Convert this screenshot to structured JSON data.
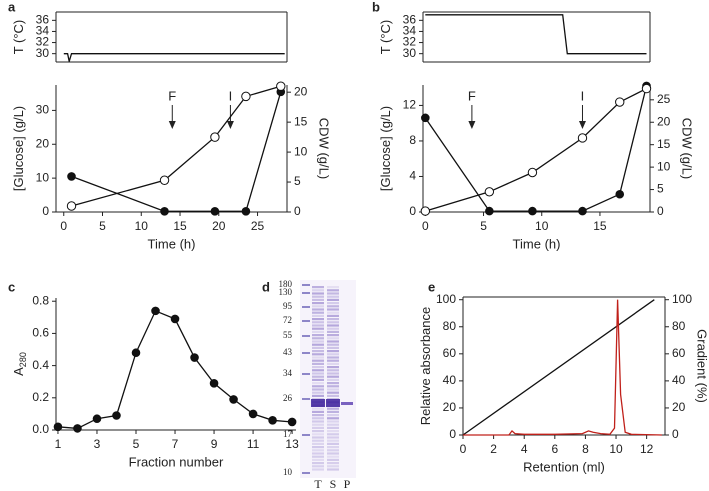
{
  "chart_data": [
    {
      "type": "line",
      "label": "a",
      "ylabel": "T (°C)",
      "xlim": [
        -1,
        28.8
      ],
      "ylim": [
        28.5,
        37.5
      ],
      "yticks": [
        30,
        32,
        34,
        36
      ],
      "series": [
        {
          "color": "#111111",
          "marker": "none",
          "x": [
            0,
            0.5,
            0.7,
            1,
            28.5
          ],
          "values": [
            30,
            30,
            28.6,
            30,
            30
          ]
        }
      ]
    },
    {
      "type": "line",
      "xlabel": "Time (h)",
      "ylabel": "[Glucose] (g/L)",
      "y2label": "CDW (g/L)",
      "xlim": [
        -1,
        28.8
      ],
      "ylim": [
        0,
        37.5
      ],
      "y2lim": [
        0,
        21.2
      ],
      "xticks": [
        0,
        5,
        10,
        15,
        20,
        25
      ],
      "yticks": [
        0,
        10,
        20,
        30
      ],
      "y2ticks": [
        0,
        5,
        10,
        15,
        20
      ],
      "annotations": [
        {
          "text": "F",
          "x": 14
        },
        {
          "text": "I",
          "x": 21.5
        }
      ],
      "series": [
        {
          "color": "#111111",
          "marker": "filled",
          "x": [
            1,
            13,
            19.5,
            23.5,
            28
          ],
          "values": [
            10.5,
            0.2,
            0.2,
            0.2,
            35.5
          ]
        },
        {
          "color": "#111111",
          "marker": "open",
          "axis": "y2",
          "x": [
            1,
            13,
            19.5,
            23.5,
            28
          ],
          "values": [
            1,
            5.3,
            12.5,
            19.3,
            21
          ]
        }
      ]
    },
    {
      "type": "line",
      "label": "b",
      "ylabel": "T (°C)",
      "xlim": [
        -0.2,
        19.3
      ],
      "ylim": [
        28.5,
        37.5
      ],
      "yticks": [
        30,
        32,
        34,
        36
      ],
      "series": [
        {
          "color": "#111111",
          "marker": "none",
          "x": [
            0,
            11.8,
            12.2,
            19
          ],
          "values": [
            37,
            37,
            30,
            30
          ]
        }
      ]
    },
    {
      "type": "line",
      "xlabel": "Time (h)",
      "ylabel": "[Glucose] (g/L)",
      "y2label": "CDW (g/L)",
      "xlim": [
        -0.2,
        19.3
      ],
      "ylim": [
        0,
        14.3
      ],
      "y2lim": [
        0,
        28.3
      ],
      "xticks": [
        0,
        5,
        10,
        15
      ],
      "yticks": [
        0,
        4,
        8,
        12
      ],
      "y2ticks": [
        0,
        5,
        10,
        15,
        20,
        25
      ],
      "annotations": [
        {
          "text": "F",
          "x": 4
        },
        {
          "text": "I",
          "x": 13.5
        }
      ],
      "series": [
        {
          "color": "#111111",
          "marker": "filled",
          "x": [
            0,
            5.5,
            9.2,
            13.5,
            16.7,
            19
          ],
          "values": [
            10.6,
            0.1,
            0.1,
            0.1,
            2,
            14.2
          ]
        },
        {
          "color": "#111111",
          "marker": "open",
          "axis": "y2",
          "x": [
            0,
            5.5,
            9.2,
            13.5,
            16.7,
            19
          ],
          "values": [
            0.2,
            4.5,
            8.8,
            16.5,
            24.5,
            27.5
          ]
        }
      ]
    },
    {
      "type": "line",
      "label": "c",
      "xlabel": "Fraction number",
      "ylabel": "A",
      "ylabel_sub": "280",
      "xlim": [
        0.9,
        13.2
      ],
      "ylim": [
        0,
        0.82
      ],
      "xticks": [
        1,
        3,
        5,
        7,
        9,
        11,
        13
      ],
      "yticks": [
        {
          "value": 0,
          "label": "0.0"
        },
        {
          "value": 0.2,
          "label": "0.2"
        },
        {
          "value": 0.4,
          "label": "0.4"
        },
        {
          "value": 0.6,
          "label": "0.6"
        },
        {
          "value": 0.8,
          "label": "0.8"
        }
      ],
      "series": [
        {
          "color": "#111111",
          "marker": "filled",
          "x": [
            1,
            2,
            3,
            4,
            5,
            6,
            7,
            8,
            9,
            10,
            11,
            12,
            13
          ],
          "values": [
            0.02,
            0.01,
            0.07,
            0.09,
            0.48,
            0.74,
            0.69,
            0.45,
            0.29,
            0.19,
            0.1,
            0.06,
            0.05
          ]
        }
      ]
    },
    {
      "type": "gel",
      "label": "d",
      "markers": [
        180,
        130,
        95,
        72,
        55,
        43,
        34,
        26,
        17,
        10
      ],
      "lanes": [
        "T",
        "S",
        "P"
      ]
    },
    {
      "type": "line",
      "label": "e",
      "xlabel": "Retention (ml)",
      "ylabel": "Relative absorbance",
      "y2label": "Gradient (%)",
      "xlim": [
        0,
        13.2
      ],
      "ylim": [
        0,
        102
      ],
      "y2lim": [
        0,
        102
      ],
      "xticks": [
        0,
        2,
        4,
        6,
        8,
        10,
        12
      ],
      "yticks": [
        0,
        20,
        40,
        60,
        80,
        100
      ],
      "y2ticks": [
        0,
        20,
        40,
        60,
        80,
        100
      ],
      "series": [
        {
          "color": "#111111",
          "marker": "none",
          "axis": "y2",
          "x": [
            0,
            12.5
          ],
          "values": [
            0,
            100
          ]
        },
        {
          "color": "#c0201a",
          "marker": "none",
          "x": [
            0,
            3.0,
            3.2,
            3.4,
            4,
            6,
            7.8,
            8.2,
            8.5,
            9,
            9.6,
            9.9,
            10.1,
            10.3,
            10.6,
            11,
            13
          ],
          "values": [
            0,
            0,
            3,
            1,
            0.5,
            0.5,
            1,
            3,
            2,
            1,
            0.5,
            5,
            100,
            30,
            2,
            0.5,
            0
          ]
        }
      ]
    }
  ]
}
